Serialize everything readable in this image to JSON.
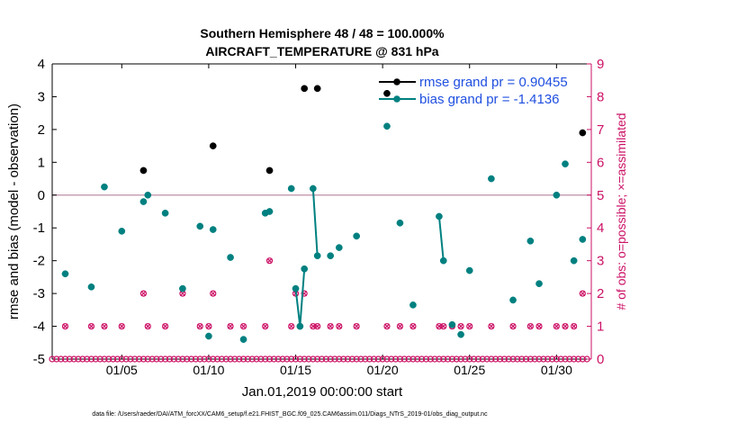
{
  "chart_data": {
    "type": "line",
    "title_line1": "Southern Hemisphere 48 / 48 = 100.000%",
    "title_line2": "AIRCRAFT_TEMPERATURE @ 831 hPa",
    "xlabel": "Jan.01,2019 00:00:00 start",
    "ylabel": "rmse and bias (model - observation)",
    "y2label": "# of obs: o=possible; ×=assimilated",
    "footnote": "data file: /Users/raeder/DAI/ATM_forcXX/CAM6_setup/f.e21.FHIST_BGC.f09_025.CAM6assim.011/Diags_NTrS_2019-01/obs_diag_output.nc",
    "xlim": [
      1,
      32
    ],
    "ylim": [
      -5,
      4
    ],
    "y2lim": [
      0,
      9
    ],
    "x_ticks": [
      {
        "value": 5,
        "label": "01/05"
      },
      {
        "value": 10,
        "label": "01/10"
      },
      {
        "value": 15,
        "label": "01/15"
      },
      {
        "value": 20,
        "label": "01/20"
      },
      {
        "value": 25,
        "label": "01/25"
      },
      {
        "value": 30,
        "label": "01/30"
      }
    ],
    "y_ticks": [
      -5,
      -4,
      -3,
      -2,
      -1,
      0,
      1,
      2,
      3,
      4
    ],
    "y2_ticks": [
      0,
      1,
      2,
      3,
      4,
      5,
      6,
      7,
      8,
      9
    ],
    "colors": {
      "rmse": "#000000",
      "bias": "#008080",
      "obs": "#cc1166",
      "zero_line": "#c8a0b4",
      "legend_text": "#1f4fe0"
    },
    "series": [
      {
        "name": "rmse grand pr = 0.90455",
        "segments": [
          [
            [
              6.25,
              0.75
            ]
          ],
          [
            [
              10.25,
              1.5
            ]
          ],
          [
            [
              13.5,
              0.75
            ]
          ],
          [
            [
              15.5,
              3.25
            ]
          ],
          [
            [
              16.25,
              3.25
            ]
          ],
          [
            [
              20.25,
              3.1
            ]
          ],
          [
            [
              31.5,
              1.9
            ]
          ]
        ]
      },
      {
        "name": "bias grand pr = -1.4136",
        "segments": [
          [
            [
              1.75,
              -2.4
            ]
          ],
          [
            [
              3.25,
              -2.8
            ]
          ],
          [
            [
              4.0,
              0.25
            ]
          ],
          [
            [
              5.0,
              -1.1
            ]
          ],
          [
            [
              6.25,
              -0.2
            ]
          ],
          [
            [
              6.5,
              0.0
            ]
          ],
          [
            [
              7.5,
              -0.55
            ]
          ],
          [
            [
              8.5,
              -2.85
            ]
          ],
          [
            [
              9.5,
              -0.95
            ]
          ],
          [
            [
              10.0,
              -4.3
            ]
          ],
          [
            [
              10.25,
              -1.05
            ]
          ],
          [
            [
              11.25,
              -1.9
            ]
          ],
          [
            [
              12.0,
              -4.4
            ]
          ],
          [
            [
              13.25,
              -0.55
            ]
          ],
          [
            [
              13.5,
              -0.5
            ]
          ],
          [
            [
              14.75,
              0.2
            ]
          ],
          [
            [
              15.0,
              -2.85
            ],
            [
              15.25,
              -4.0
            ],
            [
              15.5,
              -2.25
            ]
          ],
          [
            [
              16.0,
              0.2
            ],
            [
              16.25,
              -1.85
            ]
          ],
          [
            [
              17.0,
              -1.85
            ]
          ],
          [
            [
              17.5,
              -1.6
            ]
          ],
          [
            [
              18.5,
              -1.25
            ]
          ],
          [
            [
              20.25,
              2.1
            ]
          ],
          [
            [
              21.0,
              -0.85
            ]
          ],
          [
            [
              21.75,
              -3.35
            ]
          ],
          [
            [
              23.25,
              -0.65
            ],
            [
              23.5,
              -2.0
            ]
          ],
          [
            [
              24.0,
              -3.95
            ]
          ],
          [
            [
              24.5,
              -4.25
            ]
          ],
          [
            [
              25.0,
              -2.3
            ]
          ],
          [
            [
              26.25,
              0.5
            ]
          ],
          [
            [
              27.5,
              -3.2
            ]
          ],
          [
            [
              28.5,
              -1.4
            ]
          ],
          [
            [
              29.0,
              -2.7
            ]
          ],
          [
            [
              30.0,
              0.0
            ]
          ],
          [
            [
              30.5,
              0.95
            ]
          ],
          [
            [
              31.0,
              -2.0
            ]
          ],
          [
            [
              31.5,
              -1.35
            ]
          ]
        ]
      }
    ],
    "obs_possible_counts": [
      [
        1.0,
        0
      ],
      [
        1.25,
        0
      ],
      [
        1.5,
        0
      ],
      [
        1.75,
        0
      ],
      [
        2.0,
        0
      ],
      [
        2.25,
        0
      ],
      [
        2.5,
        0
      ],
      [
        2.75,
        0
      ],
      [
        3.0,
        0
      ],
      [
        3.25,
        0
      ],
      [
        3.5,
        0
      ],
      [
        3.75,
        0
      ],
      [
        4.0,
        0
      ],
      [
        4.25,
        0
      ],
      [
        4.5,
        0
      ],
      [
        4.75,
        0
      ],
      [
        5.0,
        0
      ],
      [
        5.25,
        0
      ],
      [
        5.5,
        0
      ],
      [
        5.75,
        0
      ],
      [
        6.0,
        0
      ],
      [
        6.25,
        0
      ],
      [
        6.5,
        0
      ],
      [
        6.75,
        0
      ],
      [
        7.0,
        0
      ],
      [
        7.25,
        0
      ],
      [
        7.5,
        0
      ],
      [
        7.75,
        0
      ],
      [
        8.0,
        0
      ],
      [
        8.25,
        0
      ],
      [
        8.5,
        0
      ],
      [
        8.75,
        0
      ],
      [
        9.0,
        0
      ],
      [
        9.25,
        0
      ],
      [
        9.5,
        0
      ],
      [
        9.75,
        0
      ],
      [
        10.0,
        0
      ],
      [
        10.25,
        0
      ],
      [
        10.5,
        0
      ],
      [
        10.75,
        0
      ],
      [
        11.0,
        0
      ],
      [
        11.25,
        0
      ],
      [
        11.5,
        0
      ],
      [
        11.75,
        0
      ],
      [
        12.0,
        0
      ],
      [
        12.25,
        0
      ],
      [
        12.5,
        0
      ],
      [
        12.75,
        0
      ],
      [
        13.0,
        0
      ],
      [
        13.25,
        0
      ],
      [
        13.5,
        0
      ],
      [
        13.75,
        0
      ],
      [
        14.0,
        0
      ],
      [
        14.25,
        0
      ],
      [
        14.5,
        0
      ],
      [
        14.75,
        0
      ],
      [
        15.0,
        0
      ],
      [
        15.25,
        0
      ],
      [
        15.5,
        0
      ],
      [
        15.75,
        0
      ],
      [
        16.0,
        0
      ],
      [
        16.25,
        0
      ],
      [
        16.5,
        0
      ],
      [
        16.75,
        0
      ],
      [
        17.0,
        0
      ],
      [
        17.25,
        0
      ],
      [
        17.5,
        0
      ],
      [
        17.75,
        0
      ],
      [
        18.0,
        0
      ],
      [
        18.25,
        0
      ],
      [
        18.5,
        0
      ],
      [
        18.75,
        0
      ],
      [
        19.0,
        0
      ],
      [
        19.25,
        0
      ],
      [
        19.5,
        0
      ],
      [
        19.75,
        0
      ],
      [
        20.0,
        0
      ],
      [
        20.25,
        0
      ],
      [
        20.5,
        0
      ],
      [
        20.75,
        0
      ],
      [
        21.0,
        0
      ],
      [
        21.25,
        0
      ],
      [
        21.5,
        0
      ],
      [
        21.75,
        0
      ],
      [
        22.0,
        0
      ],
      [
        22.25,
        0
      ],
      [
        22.5,
        0
      ],
      [
        22.75,
        0
      ],
      [
        23.0,
        0
      ],
      [
        23.25,
        0
      ],
      [
        23.5,
        0
      ],
      [
        23.75,
        0
      ],
      [
        24.0,
        0
      ],
      [
        24.25,
        0
      ],
      [
        24.5,
        0
      ],
      [
        24.75,
        0
      ],
      [
        25.0,
        0
      ],
      [
        25.25,
        0
      ],
      [
        25.5,
        0
      ],
      [
        25.75,
        0
      ],
      [
        26.0,
        0
      ],
      [
        26.25,
        0
      ],
      [
        26.5,
        0
      ],
      [
        26.75,
        0
      ],
      [
        27.0,
        0
      ],
      [
        27.25,
        0
      ],
      [
        27.5,
        0
      ],
      [
        27.75,
        0
      ],
      [
        28.0,
        0
      ],
      [
        28.25,
        0
      ],
      [
        28.5,
        0
      ],
      [
        28.75,
        0
      ],
      [
        29.0,
        0
      ],
      [
        29.25,
        0
      ],
      [
        29.5,
        0
      ],
      [
        29.75,
        0
      ],
      [
        30.0,
        0
      ],
      [
        30.25,
        0
      ],
      [
        30.5,
        0
      ],
      [
        30.75,
        0
      ],
      [
        31.0,
        0
      ],
      [
        31.25,
        0
      ],
      [
        31.5,
        0
      ],
      [
        31.75,
        0
      ],
      [
        1.75,
        1
      ],
      [
        3.25,
        1
      ],
      [
        4.0,
        1
      ],
      [
        5.0,
        1
      ],
      [
        6.25,
        2
      ],
      [
        6.5,
        1
      ],
      [
        7.5,
        1
      ],
      [
        8.5,
        2
      ],
      [
        9.5,
        1
      ],
      [
        10.0,
        1
      ],
      [
        10.25,
        2
      ],
      [
        11.25,
        1
      ],
      [
        12.0,
        1
      ],
      [
        13.25,
        1
      ],
      [
        13.5,
        3
      ],
      [
        14.75,
        1
      ],
      [
        15.0,
        2
      ],
      [
        15.25,
        1
      ],
      [
        15.5,
        2
      ],
      [
        16.0,
        1
      ],
      [
        16.25,
        1
      ],
      [
        17.0,
        1
      ],
      [
        17.5,
        1
      ],
      [
        18.5,
        1
      ],
      [
        20.25,
        1
      ],
      [
        21.0,
        1
      ],
      [
        21.75,
        1
      ],
      [
        23.25,
        1
      ],
      [
        23.5,
        1
      ],
      [
        24.0,
        1
      ],
      [
        24.5,
        1
      ],
      [
        25.0,
        1
      ],
      [
        26.25,
        1
      ],
      [
        27.5,
        1
      ],
      [
        28.5,
        1
      ],
      [
        29.0,
        1
      ],
      [
        30.0,
        1
      ],
      [
        30.5,
        1
      ],
      [
        31.0,
        1
      ],
      [
        31.5,
        2
      ]
    ],
    "obs_assimilated_counts": [
      [
        1.75,
        1
      ],
      [
        3.25,
        1
      ],
      [
        4.0,
        1
      ],
      [
        5.0,
        1
      ],
      [
        6.25,
        2
      ],
      [
        6.5,
        1
      ],
      [
        7.5,
        1
      ],
      [
        8.5,
        2
      ],
      [
        9.5,
        1
      ],
      [
        10.0,
        1
      ],
      [
        10.25,
        2
      ],
      [
        11.25,
        1
      ],
      [
        12.0,
        1
      ],
      [
        13.25,
        1
      ],
      [
        13.5,
        3
      ],
      [
        14.75,
        1
      ],
      [
        15.0,
        2
      ],
      [
        15.25,
        1
      ],
      [
        15.5,
        2
      ],
      [
        16.0,
        1
      ],
      [
        16.25,
        1
      ],
      [
        17.0,
        1
      ],
      [
        17.5,
        1
      ],
      [
        18.5,
        1
      ],
      [
        20.25,
        1
      ],
      [
        21.0,
        1
      ],
      [
        21.75,
        1
      ],
      [
        23.25,
        1
      ],
      [
        23.5,
        1
      ],
      [
        24.0,
        1
      ],
      [
        24.5,
        1
      ],
      [
        25.0,
        1
      ],
      [
        26.25,
        1
      ],
      [
        27.5,
        1
      ],
      [
        28.5,
        1
      ],
      [
        29.0,
        1
      ],
      [
        30.0,
        1
      ],
      [
        30.5,
        1
      ],
      [
        31.0,
        1
      ],
      [
        31.5,
        2
      ]
    ]
  }
}
